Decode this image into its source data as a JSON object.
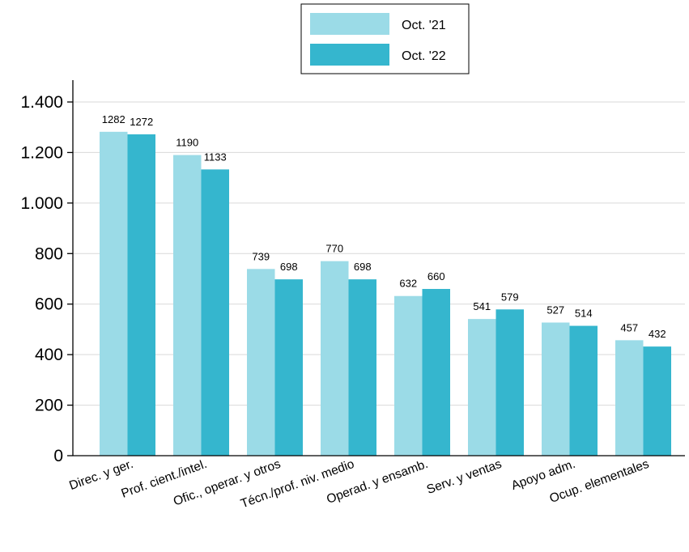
{
  "chart_data": {
    "type": "bar",
    "title": "",
    "xlabel": "",
    "ylabel": "",
    "categories": [
      "Direc. y ger.",
      "Prof. cient./intel.",
      "Ofic., operar. y otros",
      "Técn./prof. niv. medio",
      "Operad. y ensamb.",
      "Serv. y ventas",
      "Apoyo adm.",
      "Ocup. elementales"
    ],
    "series": [
      {
        "name": "Oct. '21",
        "color": "#9bdbe7",
        "values": [
          1282,
          1190,
          739,
          770,
          632,
          541,
          527,
          457
        ]
      },
      {
        "name": "Oct. '22",
        "color": "#35b6ce",
        "values": [
          1272,
          1133,
          698,
          698,
          660,
          579,
          514,
          432
        ]
      }
    ],
    "ylim": [
      0,
      1500
    ],
    "yticks": [
      0,
      200,
      400,
      600,
      800,
      1000,
      1200,
      1400
    ],
    "ytick_labels": [
      "0",
      "200",
      "400",
      "600",
      "800",
      "1.000",
      "1.200",
      "1.400"
    ],
    "grid": true,
    "legend_position": "top-center"
  }
}
